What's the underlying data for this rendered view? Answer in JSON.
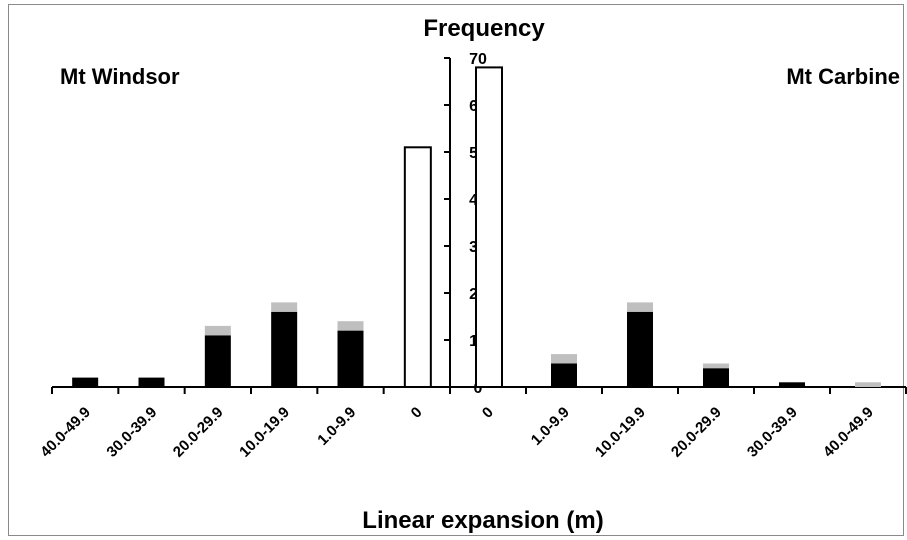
{
  "chart_data": {
    "type": "bar",
    "title": "Frequency",
    "xlabel": "Linear expansion (m)",
    "ylabel": "",
    "ylim": [
      0,
      70
    ],
    "yticks": [
      0,
      10,
      20,
      30,
      40,
      50,
      60,
      70
    ],
    "stacked": true,
    "colors": {
      "black": "#000000",
      "grey": "#bfbfbf",
      "white": "#ffffff",
      "axis": "#000000"
    },
    "panels": [
      {
        "name": "Mt Windsor",
        "categories": [
          "40.0-49.9",
          "30.0-39.9",
          "20.0-29.9",
          "10.0-19.9",
          "1.0-9.9",
          "0"
        ],
        "black": [
          2,
          2,
          11,
          16,
          12,
          0
        ],
        "grey": [
          0,
          0,
          2,
          2,
          2,
          0
        ],
        "white": [
          0,
          0,
          0,
          0,
          0,
          51
        ]
      },
      {
        "name": "Mt Carbine",
        "categories": [
          "0",
          "1.0-9.9",
          "10.0-19.9",
          "20.0-29.9",
          "30.0-39.9",
          "40.0-49.9"
        ],
        "black": [
          0,
          5,
          16,
          4,
          1,
          0
        ],
        "grey": [
          0,
          2,
          2,
          1,
          0,
          1
        ],
        "white": [
          68,
          0,
          0,
          0,
          0,
          0
        ]
      }
    ]
  }
}
